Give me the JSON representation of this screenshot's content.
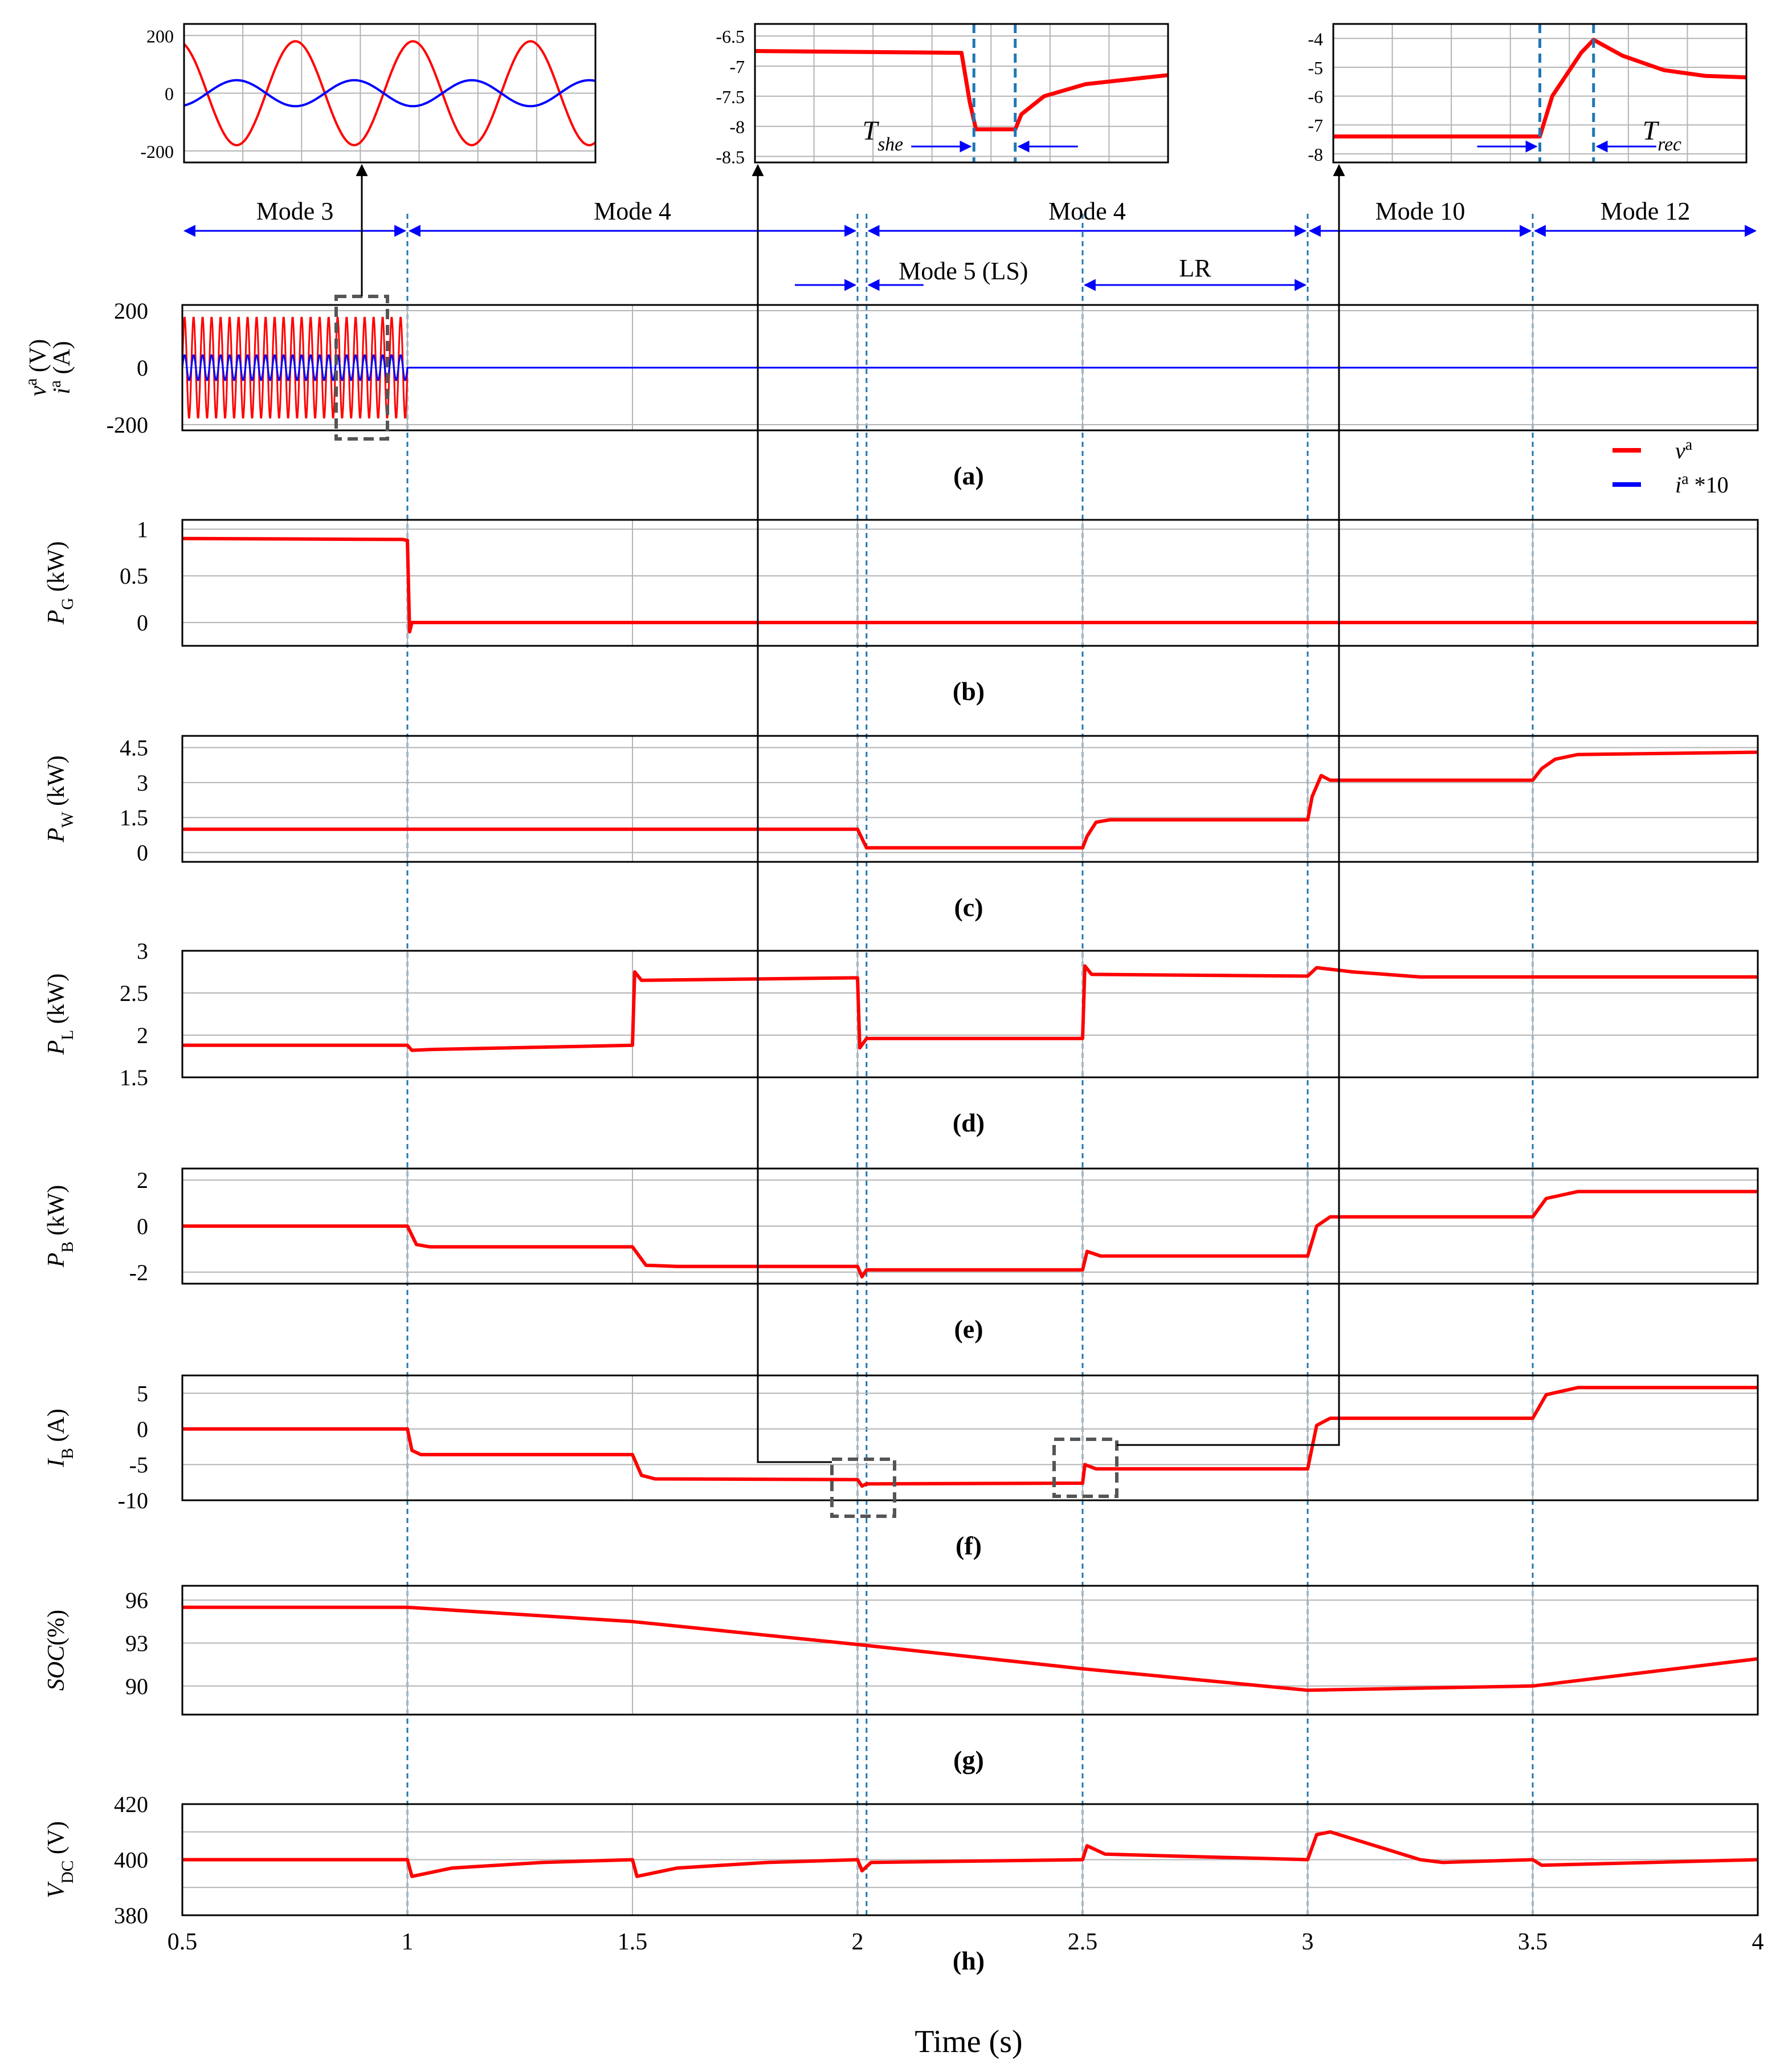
{
  "chart_data": {
    "type": "line",
    "time_axis": {
      "label": "Time (s)",
      "range": [
        0.5,
        4
      ],
      "ticks": [
        "0.5",
        "1",
        "1.5",
        "2",
        "2.5",
        "3",
        "3.5",
        "4"
      ]
    },
    "event_lines_s": [
      1,
      2,
      2.02,
      2.5,
      3,
      3.5
    ],
    "mode_annotations": [
      {
        "label": "Mode 3",
        "from": 0.5,
        "to": 1
      },
      {
        "label": "Mode 4",
        "from": 1,
        "to": 2
      },
      {
        "label": "Mode 4",
        "from": 2.02,
        "to": 3
      },
      {
        "label": "Mode 10",
        "from": 3,
        "to": 3.5
      },
      {
        "label": "Mode 12",
        "from": 3.5,
        "to": 4
      }
    ],
    "sub_annotations": [
      {
        "label": "Mode 5 (LS)",
        "from": 2,
        "to": 2.02
      },
      {
        "label": "LR",
        "from": 2.5,
        "to": 3
      }
    ],
    "colors": {
      "red": "#ff0000",
      "blue": "#0000ff",
      "grid": "#b4b4b4",
      "event": "#1f77b4"
    },
    "panels": [
      {
        "id": "a",
        "caption_letter": "a",
        "ylabel_parts": [
          "v",
          "a",
          " (V)"
        ],
        "ylabel2_parts": [
          "i",
          "a",
          " (A)"
        ],
        "ylim": [
          -220,
          220
        ],
        "ticks": [
          {
            "v": 200,
            "t": "200"
          },
          {
            "v": 0,
            "t": "0"
          },
          {
            "v": -200,
            "t": "-200"
          }
        ],
        "grid": [
          -200,
          0,
          200
        ],
        "legend": [
          {
            "color": "#ff0000",
            "text": "v",
            "sup": "a",
            "suffix": ""
          },
          {
            "color": "#0000ff",
            "text": "i",
            "sup": "a",
            "suffix": " *10"
          }
        ],
        "series": [
          {
            "name": "v_a",
            "color": "#ff0000",
            "sine": {
              "t0": 0.5,
              "t1": 1.0,
              "amp": 180,
              "freq": 50
            },
            "after": [
              [
                1.0,
                0
              ],
              [
                4,
                0
              ]
            ]
          },
          {
            "name": "i_a*10",
            "color": "#0000ff",
            "sine": {
              "t0": 0.5,
              "t1": 1.0,
              "amp": 45,
              "freq": 50
            },
            "after": [
              [
                1.0,
                0
              ],
              [
                4,
                0
              ]
            ]
          }
        ]
      },
      {
        "id": "b",
        "caption_letter": "b",
        "ylabel_parts": [
          "P",
          "G",
          " (kW)"
        ],
        "ylim": [
          -0.25,
          1.1
        ],
        "ticks": [
          {
            "v": 1,
            "t": "1"
          },
          {
            "v": 0.5,
            "t": "0.5"
          },
          {
            "v": 0,
            "t": "0"
          }
        ],
        "grid": [
          0,
          0.5,
          1
        ],
        "series": [
          {
            "name": "P_G",
            "color": "#ff0000",
            "points": [
              [
                0.5,
                0.9
              ],
              [
                0.99,
                0.89
              ],
              [
                1.0,
                0.88
              ],
              [
                1.005,
                -0.1
              ],
              [
                1.01,
                0.0
              ],
              [
                4,
                0.0
              ]
            ]
          }
        ]
      },
      {
        "id": "c",
        "caption_letter": "c",
        "ylabel_parts": [
          "P",
          "W",
          " (kW)"
        ],
        "ylim": [
          -0.4,
          5.0
        ],
        "ticks": [
          {
            "v": 4.5,
            "t": "4.5"
          },
          {
            "v": 3,
            "t": "3"
          },
          {
            "v": 1.5,
            "t": "1.5"
          },
          {
            "v": 0,
            "t": "0"
          }
        ],
        "grid": [
          0,
          1.5,
          3,
          4.5
        ],
        "series": [
          {
            "name": "P_W",
            "color": "#ff0000",
            "points": [
              [
                0.5,
                1.0
              ],
              [
                2.0,
                1.0
              ],
              [
                2.01,
                0.6
              ],
              [
                2.02,
                0.2
              ],
              [
                2.5,
                0.2
              ],
              [
                2.51,
                0.7
              ],
              [
                2.53,
                1.3
              ],
              [
                2.56,
                1.4
              ],
              [
                3.0,
                1.4
              ],
              [
                3.01,
                2.4
              ],
              [
                3.03,
                3.3
              ],
              [
                3.05,
                3.1
              ],
              [
                3.5,
                3.1
              ],
              [
                3.52,
                3.6
              ],
              [
                3.55,
                4.0
              ],
              [
                3.6,
                4.2
              ],
              [
                4.0,
                4.3
              ]
            ]
          }
        ]
      },
      {
        "id": "d",
        "caption_letter": "d",
        "ylabel_parts": [
          "P",
          "L",
          " (kW)"
        ],
        "ylim": [
          1.5,
          3.0
        ],
        "ticks": [
          {
            "v": 3,
            "t": "3"
          },
          {
            "v": 2.5,
            "t": "2.5"
          },
          {
            "v": 2,
            "t": "2"
          },
          {
            "v": 1.5,
            "t": "1.5"
          }
        ],
        "grid": [
          1.5,
          2,
          2.5,
          3
        ],
        "series": [
          {
            "name": "P_L",
            "color": "#ff0000",
            "points": [
              [
                0.5,
                1.88
              ],
              [
                1.0,
                1.88
              ],
              [
                1.01,
                1.82
              ],
              [
                1.05,
                1.83
              ],
              [
                1.5,
                1.88
              ],
              [
                1.505,
                2.75
              ],
              [
                1.52,
                2.65
              ],
              [
                2.0,
                2.68
              ],
              [
                2.005,
                1.85
              ],
              [
                2.02,
                1.96
              ],
              [
                2.5,
                1.96
              ],
              [
                2.505,
                2.82
              ],
              [
                2.52,
                2.72
              ],
              [
                3.0,
                2.7
              ],
              [
                3.02,
                2.8
              ],
              [
                3.1,
                2.75
              ],
              [
                3.25,
                2.69
              ],
              [
                4.0,
                2.69
              ]
            ]
          }
        ]
      },
      {
        "id": "e",
        "caption_letter": "e",
        "ylabel_parts": [
          "P",
          "B",
          " (kW)"
        ],
        "ylim": [
          -2.5,
          2.5
        ],
        "ticks": [
          {
            "v": 2,
            "t": "2"
          },
          {
            "v": 0,
            "t": "0"
          },
          {
            "v": -2,
            "t": "-2"
          }
        ],
        "grid": [
          -2,
          0,
          2
        ],
        "series": [
          {
            "name": "P_B",
            "color": "#ff0000",
            "points": [
              [
                0.5,
                0.0
              ],
              [
                1.0,
                0.0
              ],
              [
                1.02,
                -0.8
              ],
              [
                1.05,
                -0.9
              ],
              [
                1.5,
                -0.9
              ],
              [
                1.53,
                -1.7
              ],
              [
                1.6,
                -1.75
              ],
              [
                2.0,
                -1.75
              ],
              [
                2.01,
                -2.2
              ],
              [
                2.02,
                -1.9
              ],
              [
                2.5,
                -1.9
              ],
              [
                2.51,
                -1.1
              ],
              [
                2.54,
                -1.3
              ],
              [
                3.0,
                -1.3
              ],
              [
                3.02,
                0.0
              ],
              [
                3.05,
                0.4
              ],
              [
                3.5,
                0.4
              ],
              [
                3.53,
                1.2
              ],
              [
                3.6,
                1.5
              ],
              [
                4.0,
                1.5
              ]
            ]
          }
        ]
      },
      {
        "id": "f",
        "caption_letter": "f",
        "ylabel_parts": [
          "I",
          "B",
          " (A)"
        ],
        "ylim": [
          -10,
          7.5
        ],
        "ticks": [
          {
            "v": 5,
            "t": "5"
          },
          {
            "v": 0,
            "t": "0"
          },
          {
            "v": -5,
            "t": "-5"
          },
          {
            "v": -10,
            "t": "-10"
          }
        ],
        "grid": [
          -10,
          -5,
          0,
          5
        ],
        "series": [
          {
            "name": "I_B",
            "color": "#ff0000",
            "points": [
              [
                0.5,
                0.0
              ],
              [
                1.0,
                0.0
              ],
              [
                1.01,
                -3.0
              ],
              [
                1.03,
                -3.6
              ],
              [
                1.5,
                -3.6
              ],
              [
                1.52,
                -6.5
              ],
              [
                1.55,
                -7.0
              ],
              [
                2.0,
                -7.1
              ],
              [
                2.01,
                -8.0
              ],
              [
                2.02,
                -7.7
              ],
              [
                2.5,
                -7.6
              ],
              [
                2.505,
                -5.0
              ],
              [
                2.53,
                -5.6
              ],
              [
                3.0,
                -5.6
              ],
              [
                3.02,
                0.5
              ],
              [
                3.05,
                1.5
              ],
              [
                3.5,
                1.5
              ],
              [
                3.53,
                4.8
              ],
              [
                3.6,
                5.8
              ],
              [
                4.0,
                5.8
              ]
            ]
          }
        ]
      },
      {
        "id": "g",
        "caption_letter": "g",
        "ylabel_parts": [
          "SOC",
          "",
          "(%)"
        ],
        "ylim": [
          88,
          97
        ],
        "ticks": [
          {
            "v": 96,
            "t": "96"
          },
          {
            "v": 93,
            "t": "93"
          },
          {
            "v": 90,
            "t": "90"
          }
        ],
        "grid": [
          90,
          93,
          96
        ],
        "series": [
          {
            "name": "SOC",
            "color": "#ff0000",
            "points": [
              [
                0.5,
                95.5
              ],
              [
                1.0,
                95.5
              ],
              [
                1.5,
                94.5
              ],
              [
                2.0,
                92.9
              ],
              [
                2.5,
                91.2
              ],
              [
                3.0,
                89.7
              ],
              [
                3.5,
                90.0
              ],
              [
                4.0,
                91.9
              ]
            ]
          }
        ]
      },
      {
        "id": "h",
        "caption_letter": "h",
        "ylabel_parts": [
          "V",
          "DC",
          " (V)"
        ],
        "ylim": [
          380,
          420
        ],
        "ticks": [
          {
            "v": 420,
            "t": "420"
          },
          {
            "v": 400,
            "t": "400"
          },
          {
            "v": 380,
            "t": "380"
          }
        ],
        "grid": [
          380,
          390,
          400,
          410,
          420
        ],
        "series": [
          {
            "name": "V_DC",
            "color": "#ff0000",
            "points": [
              [
                0.5,
                400
              ],
              [
                1.0,
                400
              ],
              [
                1.01,
                394
              ],
              [
                1.1,
                397
              ],
              [
                1.3,
                399
              ],
              [
                1.5,
                400
              ],
              [
                1.51,
                394
              ],
              [
                1.6,
                397
              ],
              [
                1.8,
                399
              ],
              [
                2.0,
                400
              ],
              [
                2.01,
                396
              ],
              [
                2.03,
                399
              ],
              [
                2.5,
                400
              ],
              [
                2.51,
                405
              ],
              [
                2.55,
                402
              ],
              [
                3.0,
                400
              ],
              [
                3.02,
                409
              ],
              [
                3.05,
                410
              ],
              [
                3.15,
                405
              ],
              [
                3.25,
                400
              ],
              [
                3.3,
                399
              ],
              [
                3.5,
                400
              ],
              [
                3.52,
                398
              ],
              [
                4.0,
                400
              ]
            ]
          }
        ]
      }
    ],
    "insets": [
      {
        "id": "inset-1",
        "source_panel": "a",
        "ylim": [
          -240,
          240
        ],
        "ticks": [
          {
            "v": 200,
            "t": "200"
          },
          {
            "v": 0,
            "t": "0"
          },
          {
            "v": -200,
            "t": "-200"
          }
        ],
        "series": [
          {
            "color": "#ff0000",
            "sine_cycles": 3.5,
            "amp": 180,
            "phase": 0
          },
          {
            "color": "#0000ff",
            "sine_cycles": 3.5,
            "amp": 45,
            "phase": 3.1416
          }
        ]
      },
      {
        "id": "inset-2",
        "source_panel": "f",
        "ylim": [
          -8.6,
          -6.3
        ],
        "ticks": [
          {
            "v": -6.5,
            "t": "-6.5"
          },
          {
            "v": -7,
            "t": "-7"
          },
          {
            "v": -7.5,
            "t": "-7.5"
          },
          {
            "v": -8,
            "t": "-8"
          },
          {
            "v": -8.5,
            "t": "-8.5"
          }
        ],
        "annotation": {
          "symbol": "T",
          "sub": "she"
        },
        "vlines_frac": [
          0.53,
          0.63
        ],
        "series": [
          {
            "color": "#ff0000",
            "points_frac": [
              [
                0,
                -6.75
              ],
              [
                0.5,
                -6.78
              ],
              [
                0.52,
                -7.6
              ],
              [
                0.535,
                -8.05
              ],
              [
                0.63,
                -8.05
              ],
              [
                0.645,
                -7.8
              ],
              [
                0.7,
                -7.5
              ],
              [
                0.8,
                -7.3
              ],
              [
                1.0,
                -7.15
              ]
            ]
          }
        ]
      },
      {
        "id": "inset-3",
        "source_panel": "f",
        "ylim": [
          -8.3,
          -3.5
        ],
        "ticks": [
          {
            "v": -4,
            "t": "-4"
          },
          {
            "v": -5,
            "t": "-5"
          },
          {
            "v": -6,
            "t": "-6"
          },
          {
            "v": -7,
            "t": "-7"
          },
          {
            "v": -8,
            "t": "-8"
          }
        ],
        "annotation": {
          "symbol": "T",
          "sub": "rec"
        },
        "vlines_frac": [
          0.5,
          0.63
        ],
        "series": [
          {
            "color": "#ff0000",
            "points_frac": [
              [
                0,
                -7.4
              ],
              [
                0.5,
                -7.4
              ],
              [
                0.53,
                -6.0
              ],
              [
                0.6,
                -4.5
              ],
              [
                0.63,
                -4.05
              ],
              [
                0.7,
                -4.6
              ],
              [
                0.8,
                -5.1
              ],
              [
                0.9,
                -5.3
              ],
              [
                1.0,
                -5.35
              ]
            ]
          }
        ]
      }
    ]
  }
}
